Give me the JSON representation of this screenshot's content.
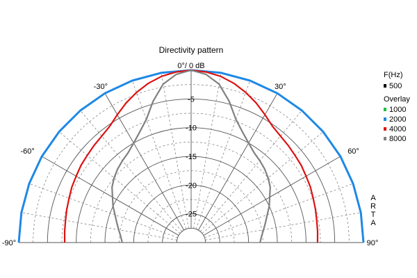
{
  "chart_data": {
    "type": "polar-half",
    "title": "Directivity pattern",
    "top_label": "0°/ 0 dB",
    "angle_labels": [
      "-90°",
      "-60°",
      "-30°",
      "30°",
      "60°",
      "90°"
    ],
    "angle_values": [
      -90,
      -60,
      -30,
      30,
      60,
      90
    ],
    "db_labels": [
      "-5",
      "-10",
      "-15",
      "-20",
      "-25"
    ],
    "db_values": [
      -5,
      -10,
      -15,
      -20,
      -25
    ],
    "r_range_db": [
      -30,
      0
    ],
    "grid_db_step": 2.5,
    "angle_grid_step_deg": 10,
    "legend": {
      "header": "F(Hz)",
      "overlay_label": "Overlay",
      "main": {
        "name": "500",
        "color": "#000000"
      },
      "overlays": [
        {
          "name": "1000",
          "color": "#22bb44"
        },
        {
          "name": "2000",
          "color": "#1e88e5"
        },
        {
          "name": "4000",
          "color": "#dd1111"
        },
        {
          "name": "8000",
          "color": "#808080"
        }
      ]
    },
    "vertical_label": "ARTA",
    "series": [
      {
        "name": "2000",
        "color": "#1e88e5",
        "angles": [
          0,
          10,
          20,
          30,
          40,
          50,
          60,
          70,
          80,
          90
        ],
        "db": [
          0,
          0,
          0,
          0,
          0,
          0,
          0,
          0,
          0,
          0
        ]
      },
      {
        "name": "4000",
        "color": "#dd1111",
        "angles": [
          0,
          5,
          10,
          15,
          20,
          25,
          30,
          35,
          40,
          45,
          50,
          55,
          60,
          65,
          70,
          75,
          80,
          85,
          90
        ],
        "db": [
          0,
          -0.2,
          -0.6,
          -1.3,
          -2.2,
          -3.2,
          -4.3,
          -5.3,
          -5.8,
          -6.1,
          -6.4,
          -6.6,
          -6.9,
          -7.1,
          -7.4,
          -7.6,
          -7.8,
          -7.9,
          -8.0
        ]
      },
      {
        "name": "8000",
        "color": "#808080",
        "angles": [
          0,
          5,
          10,
          15,
          20,
          25,
          30,
          35,
          40,
          45,
          50,
          55,
          60,
          65,
          70,
          75,
          80,
          85,
          90
        ],
        "db": [
          0,
          -0.6,
          -2.0,
          -4.5,
          -7.2,
          -8.8,
          -10.0,
          -10.9,
          -11.4,
          -11.9,
          -12.5,
          -13.2,
          -14.2,
          -15.0,
          -15.9,
          -16.6,
          -17.2,
          -17.7,
          -18.0
        ]
      }
    ]
  }
}
